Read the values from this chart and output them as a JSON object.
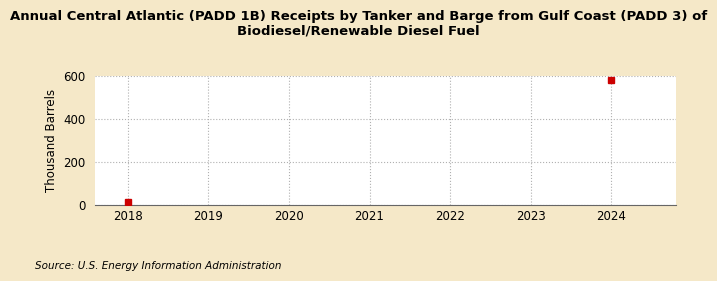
{
  "title": "Annual Central Atlantic (PADD 1B) Receipts by Tanker and Barge from Gulf Coast (PADD 3) of\nBiodiesel/Renewable Diesel Fuel",
  "ylabel": "Thousand Barrels",
  "source": "Source: U.S. Energy Information Administration",
  "x_values": [
    2018,
    2024
  ],
  "y_values": [
    16,
    578
  ],
  "ylim": [
    0,
    600
  ],
  "yticks": [
    0,
    200,
    400,
    600
  ],
  "xlim": [
    2017.6,
    2024.8
  ],
  "xticks": [
    2018,
    2019,
    2020,
    2021,
    2022,
    2023,
    2024
  ],
  "marker_color": "#cc0000",
  "marker": "s",
  "marker_size": 4,
  "fig_background_color": "#f5e8c8",
  "plot_background_color": "#ffffff",
  "grid_color": "#b0b0b0",
  "grid_style": ":",
  "title_fontsize": 9.5,
  "axis_fontsize": 8.5,
  "tick_fontsize": 8.5,
  "source_fontsize": 7.5
}
